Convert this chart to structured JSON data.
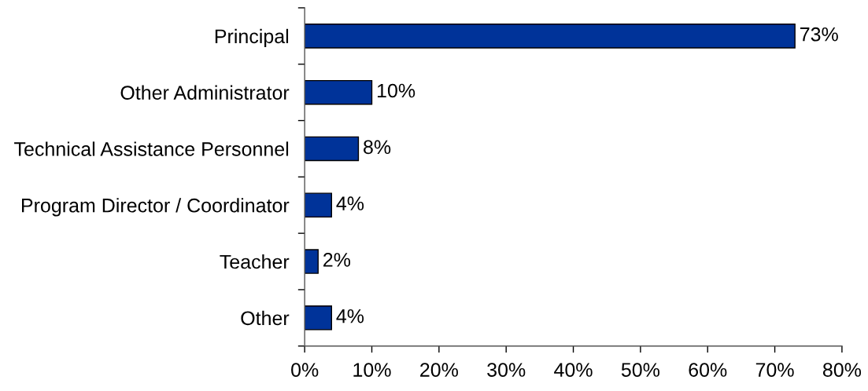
{
  "chart_data": {
    "type": "bar",
    "orientation": "horizontal",
    "categories": [
      "Principal",
      "Other Administrator",
      "Technical Assistance Personnel",
      "Program Director / Coordinator",
      "Teacher",
      "Other"
    ],
    "values": [
      73,
      10,
      8,
      4,
      2,
      4
    ],
    "value_labels": [
      "73%",
      "10%",
      "8%",
      "4%",
      "2%",
      "4%"
    ],
    "color": "#003399",
    "xlim": [
      0,
      80
    ],
    "xticks": [
      {
        "value": 0,
        "label": "0%"
      },
      {
        "value": 10,
        "label": "10%"
      },
      {
        "value": 20,
        "label": "20%"
      },
      {
        "value": 30,
        "label": "30%"
      },
      {
        "value": 40,
        "label": "40%"
      },
      {
        "value": 50,
        "label": "50%"
      },
      {
        "value": 60,
        "label": "60%"
      },
      {
        "value": 70,
        "label": "70%"
      },
      {
        "value": 80,
        "label": "80%"
      }
    ],
    "grid": false
  }
}
